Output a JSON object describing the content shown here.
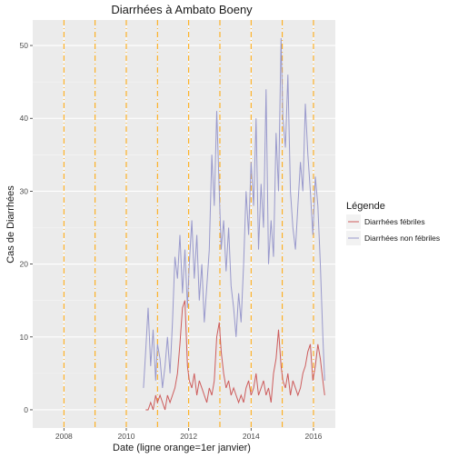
{
  "chart_data": {
    "type": "line",
    "title": "Diarrhées à Ambato Boeny",
    "xlabel": "Date (ligne orange=1er janvier)",
    "ylabel": "Cas de Diarrhées",
    "xlim": [
      2007.0,
      2016.7
    ],
    "ylim": [
      -2.5,
      53.5
    ],
    "x_ticks": [
      2008,
      2010,
      2012,
      2014,
      2016
    ],
    "x_tick_labels": [
      "2008",
      "2010",
      "2012",
      "2014",
      "2016"
    ],
    "y_ticks": [
      0,
      10,
      20,
      30,
      40,
      50
    ],
    "y_tick_labels": [
      "0",
      "10",
      "20",
      "30",
      "40",
      "50"
    ],
    "grid": true,
    "vlines": [
      2008,
      2009,
      2010,
      2011,
      2012,
      2013,
      2014,
      2015,
      2016
    ],
    "legend": {
      "title": "Légende",
      "position": "right",
      "entries": [
        "Diarrhées fébriles",
        "Diarrhées non fébriles"
      ]
    },
    "colors": {
      "febriles": "#cd5c5c",
      "non_febriles": "#9999cc",
      "vline": "#ffa500",
      "panel": "#ebebeb"
    },
    "series": [
      {
        "name": "Diarrhées fébriles",
        "x": [
          2010.62,
          2010.7,
          2010.78,
          2010.86,
          2010.94,
          2011.0,
          2011.08,
          2011.16,
          2011.24,
          2011.32,
          2011.4,
          2011.48,
          2011.56,
          2011.64,
          2011.72,
          2011.8,
          2011.88,
          2011.96,
          2012.02,
          2012.1,
          2012.18,
          2012.26,
          2012.34,
          2012.42,
          2012.5,
          2012.58,
          2012.66,
          2012.74,
          2012.82,
          2012.9,
          2012.98,
          2013.04,
          2013.12,
          2013.2,
          2013.28,
          2013.36,
          2013.44,
          2013.52,
          2013.6,
          2013.68,
          2013.76,
          2013.84,
          2013.92,
          2014.0,
          2014.08,
          2014.16,
          2014.24,
          2014.32,
          2014.4,
          2014.48,
          2014.56,
          2014.64,
          2014.72,
          2014.8,
          2014.88,
          2014.96,
          2015.02,
          2015.1,
          2015.18,
          2015.26,
          2015.34,
          2015.42,
          2015.5,
          2015.58,
          2015.66,
          2015.74,
          2015.82,
          2015.9,
          2015.98,
          2016.06,
          2016.14,
          2016.22,
          2016.3,
          2016.36
        ],
        "values": [
          0,
          0,
          1,
          0,
          2,
          1,
          2,
          1,
          0,
          2,
          1,
          2,
          3,
          5,
          9,
          14,
          15,
          6,
          4,
          3,
          5,
          2,
          4,
          3,
          2,
          1,
          3,
          2,
          4,
          10,
          12,
          8,
          5,
          3,
          4,
          2,
          3,
          2,
          1,
          2,
          1,
          3,
          4,
          2,
          3,
          5,
          2,
          3,
          4,
          2,
          3,
          1,
          5,
          7,
          11,
          6,
          4,
          3,
          5,
          2,
          4,
          3,
          2,
          3,
          5,
          6,
          8,
          9,
          4,
          6,
          9,
          7,
          4,
          2
        ]
      },
      {
        "name": "Diarrhées non fébriles",
        "x": [
          2010.55,
          2010.62,
          2010.7,
          2010.78,
          2010.86,
          2010.94,
          2011.0,
          2011.08,
          2011.16,
          2011.24,
          2011.32,
          2011.4,
          2011.48,
          2011.56,
          2011.64,
          2011.72,
          2011.8,
          2011.88,
          2011.96,
          2012.02,
          2012.1,
          2012.18,
          2012.26,
          2012.34,
          2012.42,
          2012.5,
          2012.58,
          2012.66,
          2012.74,
          2012.82,
          2012.9,
          2012.98,
          2013.04,
          2013.12,
          2013.2,
          2013.28,
          2013.36,
          2013.44,
          2013.52,
          2013.6,
          2013.68,
          2013.76,
          2013.84,
          2013.92,
          2014.0,
          2014.08,
          2014.16,
          2014.24,
          2014.32,
          2014.4,
          2014.48,
          2014.56,
          2014.64,
          2014.72,
          2014.8,
          2014.88,
          2014.96,
          2015.02,
          2015.1,
          2015.18,
          2015.26,
          2015.34,
          2015.42,
          2015.5,
          2015.58,
          2015.66,
          2015.74,
          2015.82,
          2015.9,
          2015.98,
          2016.06,
          2016.14,
          2016.22,
          2016.3,
          2016.36
        ],
        "values": [
          3,
          8,
          14,
          6,
          11,
          4,
          9,
          7,
          3,
          6,
          10,
          5,
          12,
          21,
          18,
          24,
          16,
          22,
          14,
          20,
          26,
          18,
          24,
          15,
          20,
          12,
          17,
          22,
          35,
          28,
          41,
          30,
          22,
          26,
          19,
          25,
          17,
          14,
          10,
          16,
          12,
          20,
          30,
          24,
          34,
          28,
          40,
          22,
          31,
          25,
          44,
          20,
          26,
          21,
          38,
          30,
          51,
          40,
          36,
          46,
          30,
          25,
          22,
          28,
          34,
          30,
          42,
          35,
          30,
          24,
          32,
          28,
          20,
          10,
          4
        ]
      }
    ]
  }
}
